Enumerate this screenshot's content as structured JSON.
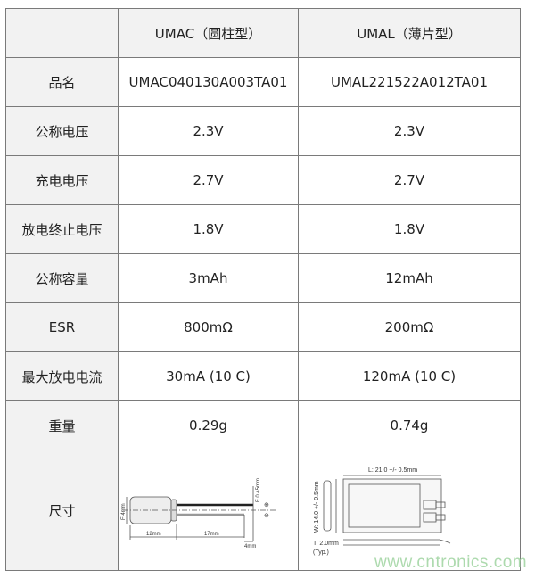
{
  "table": {
    "header": [
      "",
      "UMAC（圆柱型）",
      "UMAL（薄片型）"
    ],
    "rows": [
      {
        "label": "品名",
        "umac": "UMAC040130A003TA01",
        "umal": "UMAL221522A012TA01"
      },
      {
        "label": "公称电压",
        "umac": "2.3V",
        "umal": "2.3V"
      },
      {
        "label": "充电电压",
        "umac": "2.7V",
        "umal": "2.7V"
      },
      {
        "label": "放电终止电压",
        "umac": "1.8V",
        "umal": "1.8V"
      },
      {
        "label": "公称容量",
        "umac": "3mAh",
        "umal": "12mAh"
      },
      {
        "label": "ESR",
        "umac": "800mΩ",
        "umal": "200mΩ"
      },
      {
        "label": "最大放电电流",
        "umac": "30mA (10 C)",
        "umal": "120mA (10 C)"
      },
      {
        "label": "重量",
        "umac": "0.29g",
        "umal": "0.74g"
      }
    ],
    "size_label": "尺寸",
    "umac_drawing": {
      "diameter": "F 4mm",
      "lead_diameter": "F 0.45mm",
      "body_length": "12mm",
      "lead_length": "17mm",
      "lead_spacing": "4mm",
      "plus": "⊕",
      "minus": "⊖"
    },
    "umal_drawing": {
      "length": "L: 21.0 +/- 0.5mm",
      "width": "W: 14.0 +/- 0.5mm",
      "thickness": "T: 2.0mm",
      "typ": "(Typ.)"
    }
  },
  "watermark": "www.cntronics.com"
}
